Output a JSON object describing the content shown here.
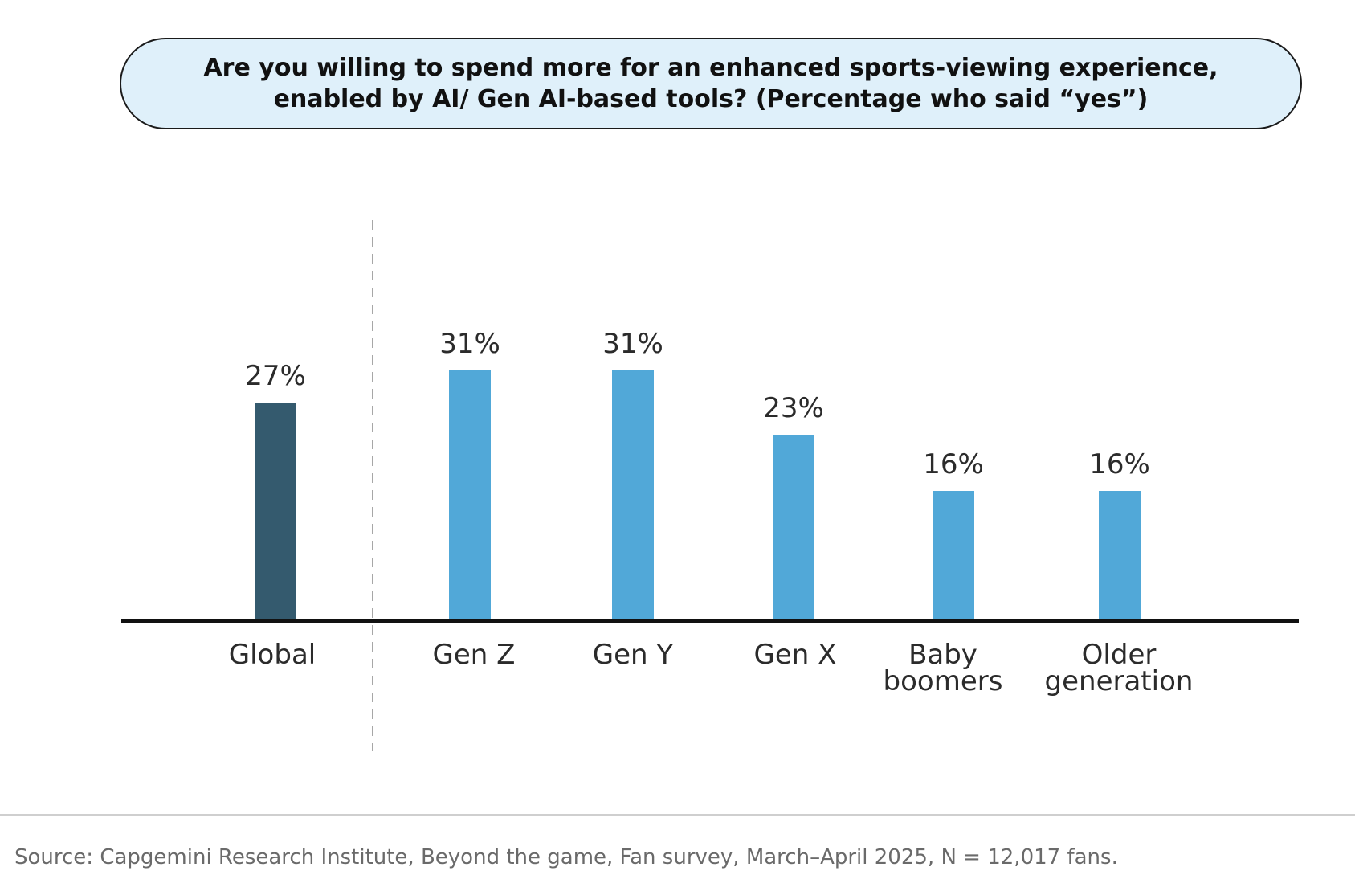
{
  "title": {
    "line1": "Are you willing to spend more for an enhanced sports-viewing experience,",
    "line2": "enabled by AI/ Gen AI-based tools? (Percentage who said “yes”)"
  },
  "source": "Source: Capgemini Research Institute, Beyond the game, Fan survey, March–April 2025, N = 12,017 fans.",
  "colors": {
    "global_bar": "#345a6e",
    "generation_bar": "#51a8d8",
    "title_fill": "#dff0fa"
  },
  "chart_data": {
    "type": "bar",
    "title": "Are you willing to spend more for an enhanced sports-viewing experience, enabled by AI/ Gen AI-based tools? (Percentage who said “yes”)",
    "categories": [
      [
        "Global"
      ],
      [
        "Gen Z"
      ],
      [
        "Gen Y"
      ],
      [
        "Gen X"
      ],
      [
        "Baby",
        "boomers"
      ],
      [
        "Older",
        "generation"
      ]
    ],
    "values": [
      27,
      31,
      31,
      23,
      16,
      16
    ],
    "value_labels": [
      "27%",
      "31%",
      "31%",
      "23%",
      "16%",
      "16%"
    ],
    "unit": "%",
    "ylim": [
      0,
      31
    ],
    "xlabel": "",
    "ylabel": "",
    "grid": false,
    "legend": "none"
  }
}
